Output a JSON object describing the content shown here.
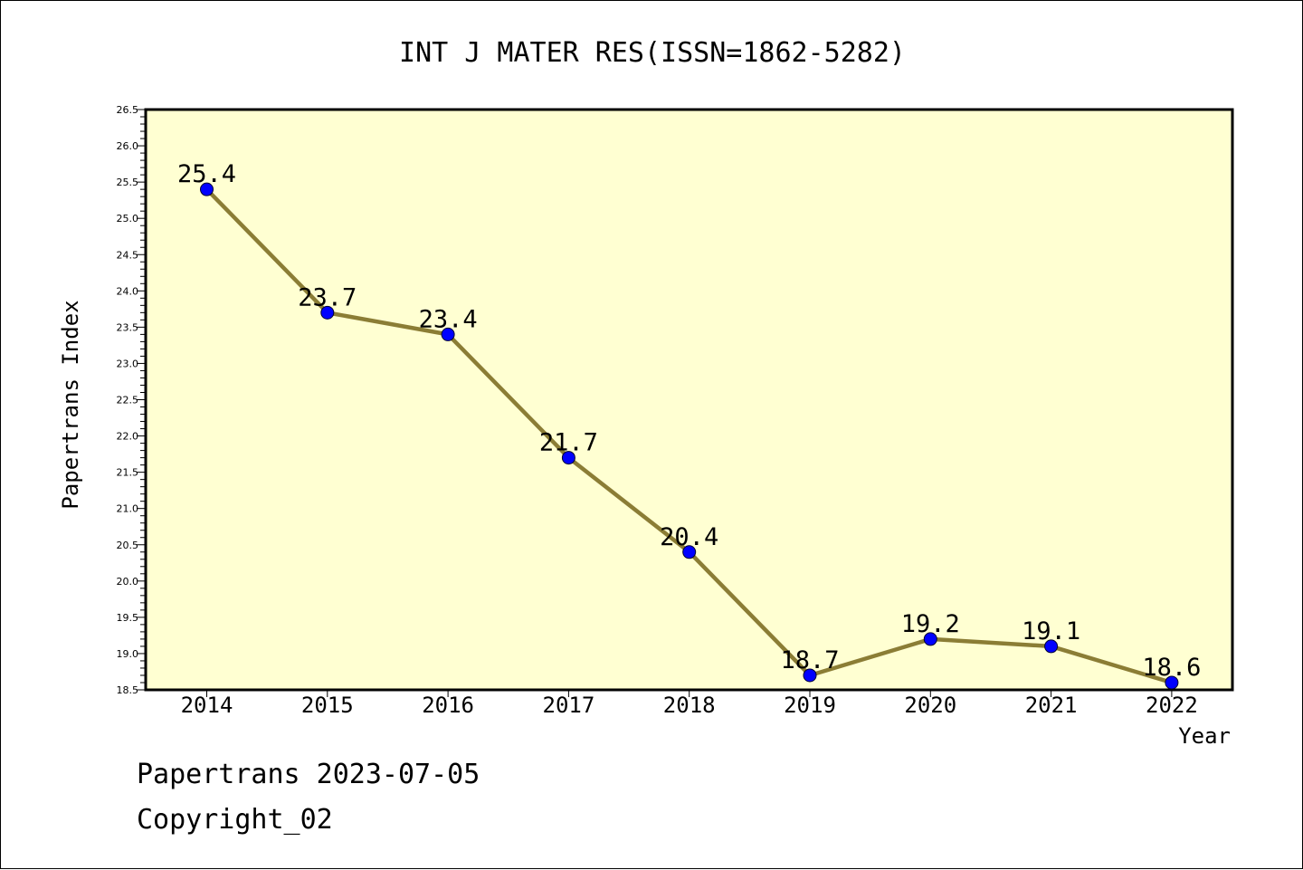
{
  "chart_data": {
    "type": "line",
    "title": "INT J MATER RES(ISSN=1862-5282)",
    "xlabel": "Year",
    "ylabel": "Papertrans Index",
    "categories": [
      "2014",
      "2015",
      "2016",
      "2017",
      "2018",
      "2019",
      "2020",
      "2021",
      "2022"
    ],
    "series": [
      {
        "values": [
          25.4,
          23.7,
          23.4,
          21.7,
          20.4,
          18.7,
          19.2,
          19.1,
          18.6
        ],
        "labels": [
          "25.4",
          "23.7",
          "23.4",
          "21.7",
          "20.4",
          "18.7",
          "19.2",
          "19.1",
          "18.6"
        ]
      }
    ],
    "ylim": [
      18.5,
      26.5
    ],
    "yticks": [
      "18.5",
      "19.0",
      "19.5",
      "20.0",
      "20.5",
      "21.0",
      "21.5",
      "22.0",
      "22.5",
      "23.0",
      "23.5",
      "24.0",
      "24.5",
      "25.0",
      "25.5",
      "26.0",
      "26.5"
    ],
    "grid": false,
    "legend": "none",
    "colors": {
      "plot_background": "#ffffd2",
      "line": "#8b7d35",
      "marker": "#0000ff",
      "axis": "#000000"
    }
  },
  "footer": {
    "watermark": "Papertrans 2023-07-05",
    "copyright": "Copyright_02"
  }
}
